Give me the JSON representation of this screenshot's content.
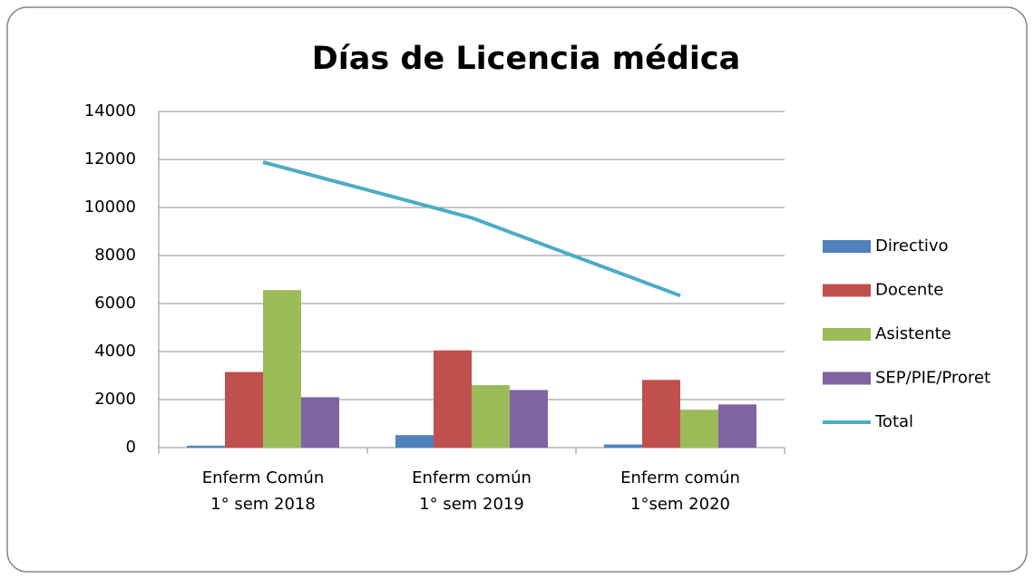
{
  "chart_data": {
    "type": "bar+line",
    "title": "Días de Licencia médica",
    "categories": [
      "Enferm Común\n1° sem 2018",
      "Enferm común\n1° sem 2019",
      "Enferm común\n1°sem 2020"
    ],
    "series": [
      {
        "name": "Directivo",
        "type": "bar",
        "color": "#4f81bd",
        "values": [
          80,
          520,
          130
        ]
      },
      {
        "name": "Docente",
        "type": "bar",
        "color": "#c0504d",
        "values": [
          3150,
          4050,
          2820
        ]
      },
      {
        "name": "Asistente",
        "type": "bar",
        "color": "#9bbb59",
        "values": [
          6560,
          2600,
          1580
        ]
      },
      {
        "name": "SEP/PIE/Proret",
        "type": "bar",
        "color": "#8064a2",
        "values": [
          2100,
          2400,
          1800
        ]
      },
      {
        "name": "Total",
        "type": "line",
        "color": "#4bacc6",
        "values": [
          11890,
          9570,
          6330
        ]
      }
    ],
    "ylim": [
      0,
      14000
    ],
    "yticks": [
      0,
      2000,
      4000,
      6000,
      8000,
      10000,
      12000,
      14000
    ],
    "grid": true,
    "legend": "right"
  }
}
